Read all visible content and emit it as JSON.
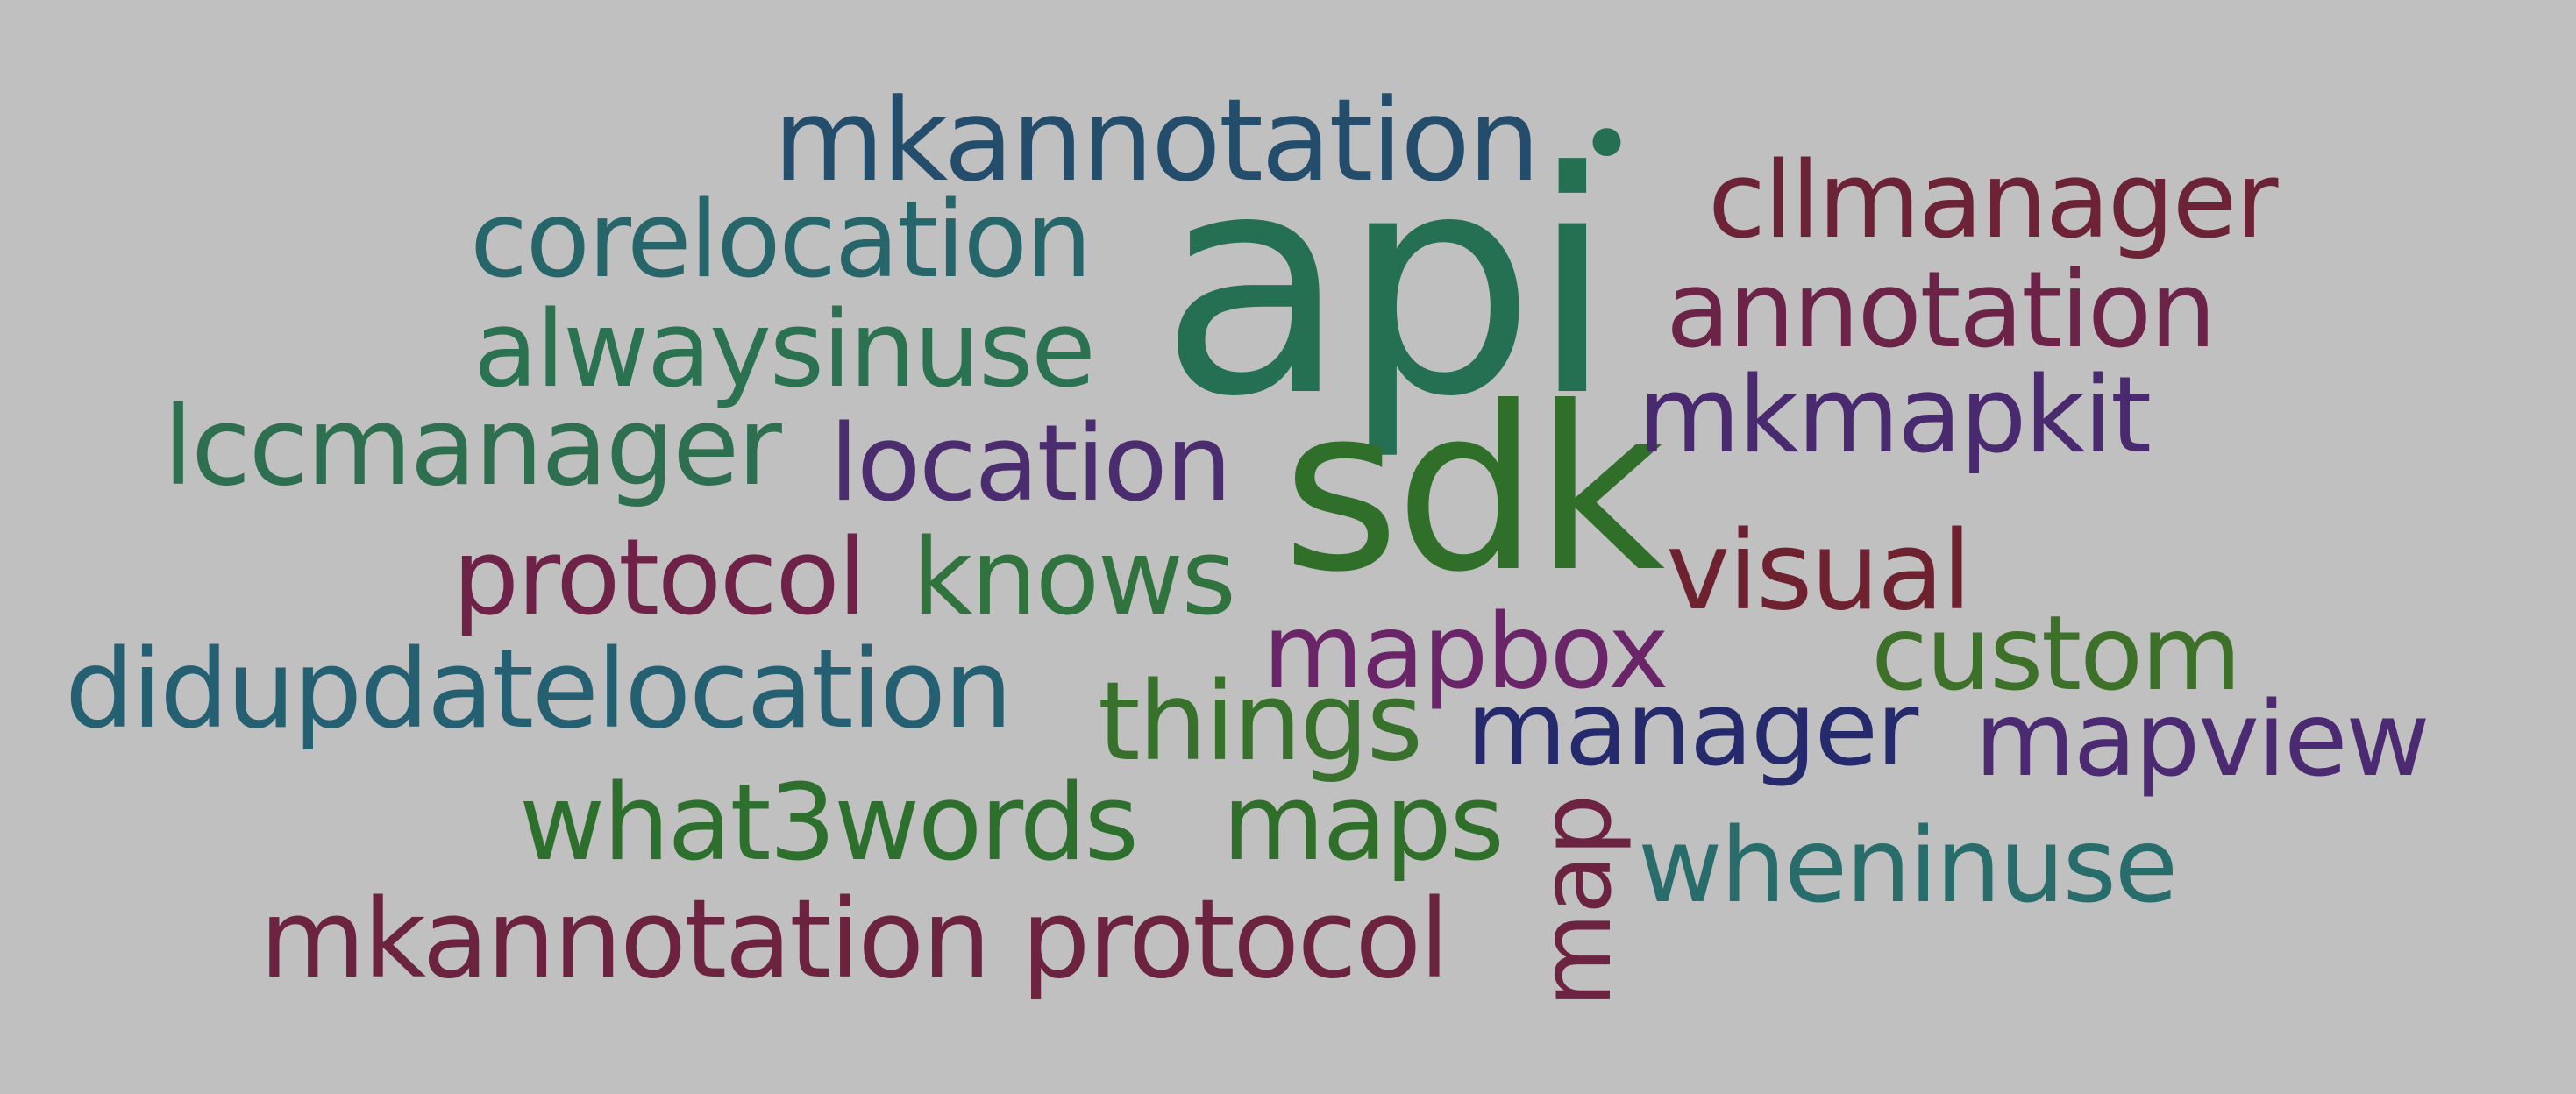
{
  "words": [
    {
      "text": "api",
      "color": "#256f52"
    },
    {
      "text": "sdk",
      "color": "#306f29"
    },
    {
      "text": "mkannotation",
      "color": "#234d6b"
    },
    {
      "text": "cllmanager",
      "color": "#6b2335"
    },
    {
      "text": "corelocation",
      "color": "#26666a"
    },
    {
      "text": "annotation",
      "color": "#6b2348"
    },
    {
      "text": "alwaysinuse",
      "color": "#2b7250"
    },
    {
      "text": "mkmapkit",
      "color": "#4a2a6e"
    },
    {
      "text": "lccmanager",
      "color": "#2e6f4f"
    },
    {
      "text": "location",
      "color": "#4b2c6f"
    },
    {
      "text": "protocol",
      "color": "#6e2248"
    },
    {
      "text": "knows",
      "color": "#30733e"
    },
    {
      "text": "visual",
      "color": "#6e2230"
    },
    {
      "text": "mapbox",
      "color": "#6a2468"
    },
    {
      "text": "custom",
      "color": "#3d7129"
    },
    {
      "text": "didupdatelocation",
      "color": "#245f72"
    },
    {
      "text": "things",
      "color": "#38712b"
    },
    {
      "text": "manager",
      "color": "#252a6d"
    },
    {
      "text": "mapview",
      "color": "#4b2a72"
    },
    {
      "text": "what3words",
      "color": "#2d6f2c"
    },
    {
      "text": "maps",
      "color": "#306f2a"
    },
    {
      "text": "wheninuse",
      "color": "#286c6c"
    },
    {
      "text": "mkannotation protocol",
      "color": "#6c2340"
    },
    {
      "text": "map",
      "color": "#6c2342"
    },
    {
      "text": "•",
      "color": "#256f52"
    }
  ]
}
